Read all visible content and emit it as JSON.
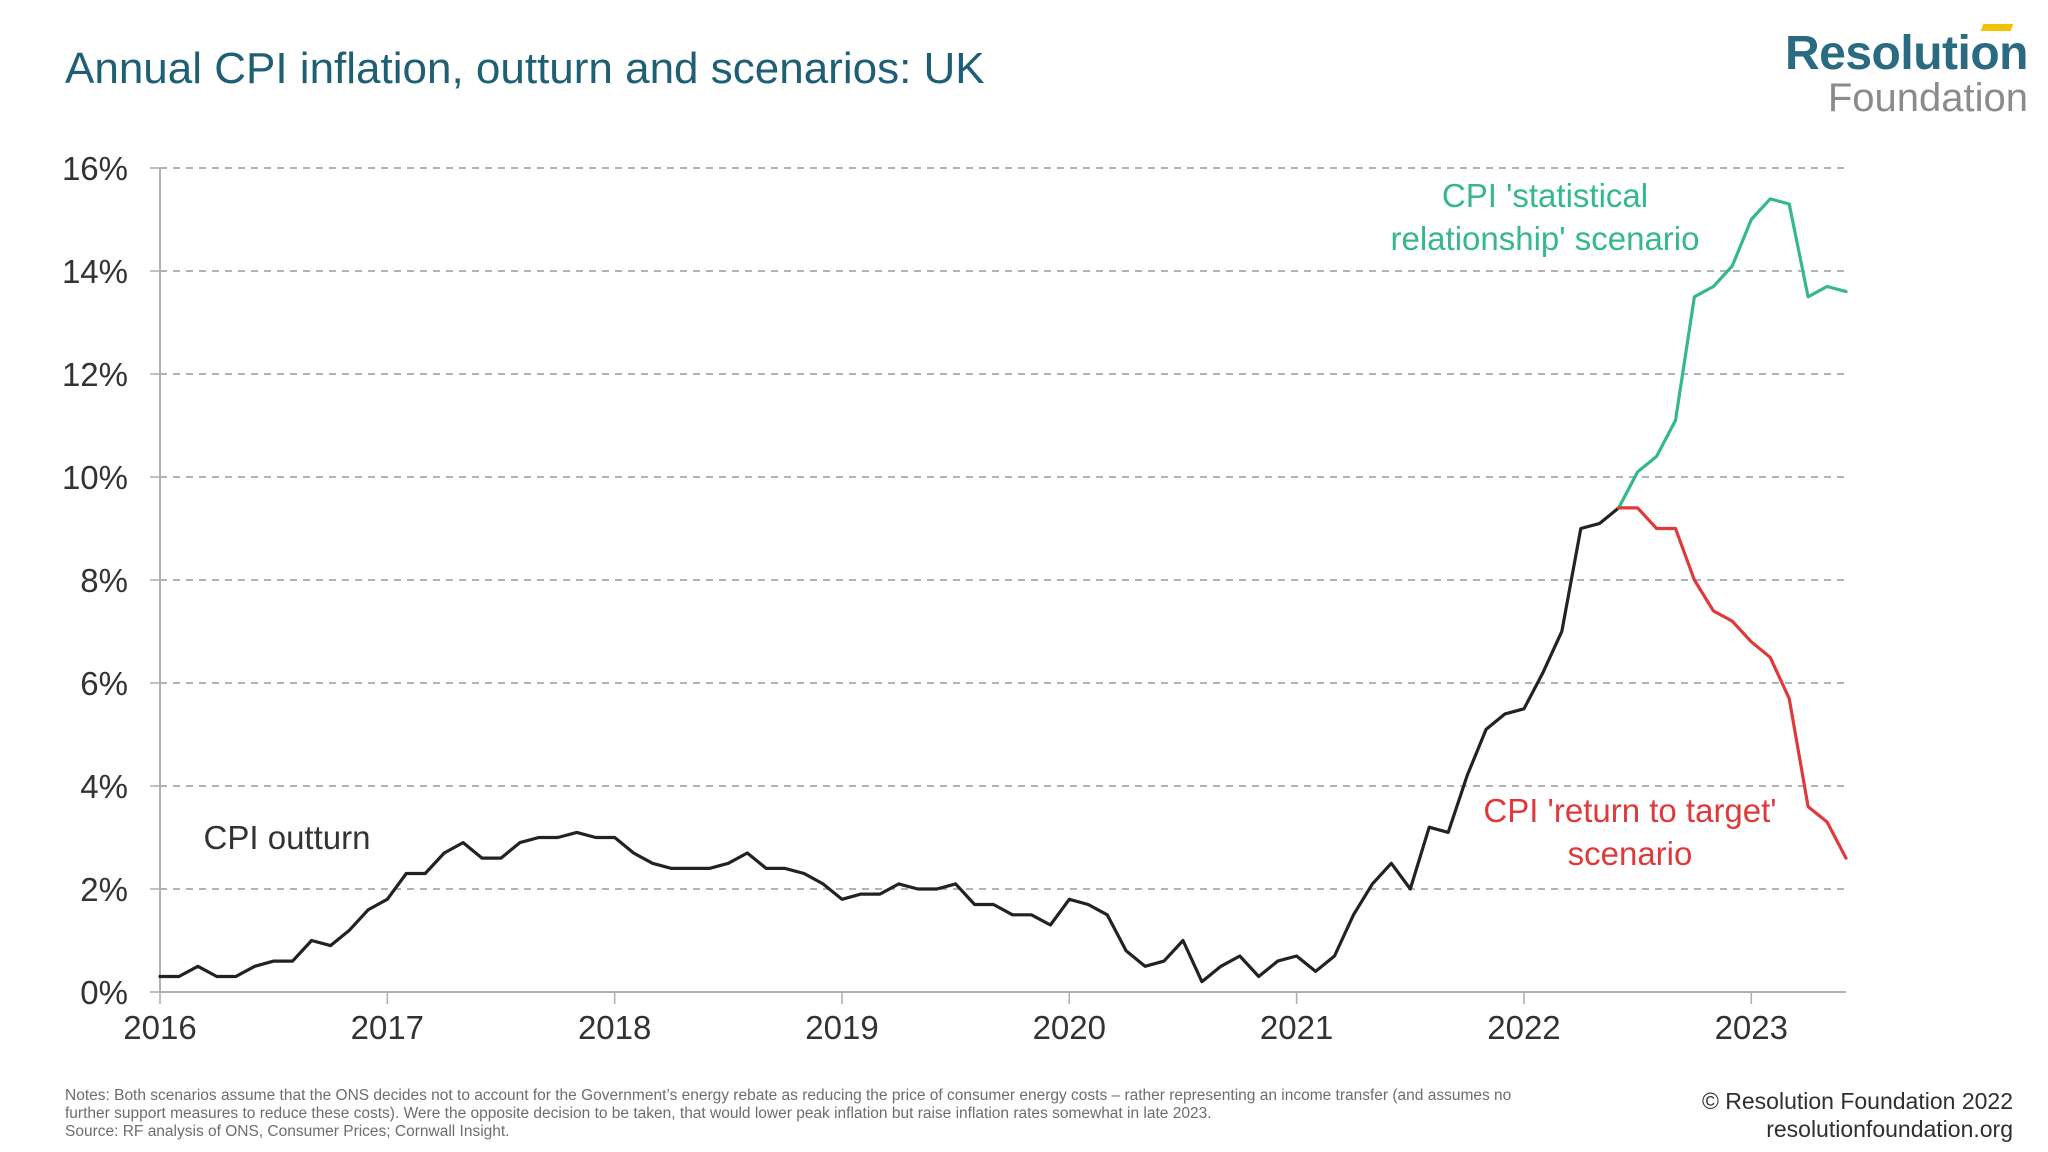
{
  "title": "Annual CPI inflation, outturn and scenarios: UK",
  "logo": {
    "line1": "Resolution",
    "line2": "Foundation",
    "accent_color": "#f2c200"
  },
  "notes": [
    "Notes: Both scenarios assume that the ONS decides not to account for the Government’s energy rebate as reducing the price of consumer energy costs – rather representing an income transfer (and assumes no",
    "further support measures to reduce these costs). Were the opposite decision to be taken, that would lower peak inflation but raise inflation rates somewhat in late 2023.",
    "Source: RF analysis of ONS, Consumer Prices; Cornwall Insight."
  ],
  "credit": {
    "copyright": "© Resolution Foundation 2022",
    "url": "resolutionfoundation.org"
  },
  "chart_data": {
    "type": "line",
    "title": "Annual CPI inflation, outturn and scenarios: UK",
    "xlabel": "",
    "ylabel": "",
    "x_ticks": [
      "2016",
      "2017",
      "2018",
      "2019",
      "2020",
      "2021",
      "2022",
      "2023"
    ],
    "y_ticks": [
      "0%",
      "2%",
      "4%",
      "6%",
      "8%",
      "10%",
      "12%",
      "14%",
      "16%"
    ],
    "xlim": [
      "2016-01",
      "2023-06"
    ],
    "ylim": [
      0,
      16
    ],
    "grid": "horizontal dashed",
    "colors": {
      "outturn": "#222222",
      "statistical": "#35b88c",
      "target": "#de3a3a",
      "grid": "#9a9a9a",
      "axis": "#b0b0b0",
      "tick_text": "#333333"
    },
    "series": [
      {
        "name": "CPI outturn",
        "key": "outturn",
        "start": "2016-01",
        "values": [
          0.3,
          0.3,
          0.5,
          0.3,
          0.3,
          0.5,
          0.6,
          0.6,
          1.0,
          0.9,
          1.2,
          1.6,
          1.8,
          2.3,
          2.3,
          2.7,
          2.9,
          2.6,
          2.6,
          2.9,
          3.0,
          3.0,
          3.1,
          3.0,
          3.0,
          2.7,
          2.5,
          2.4,
          2.4,
          2.4,
          2.5,
          2.7,
          2.4,
          2.4,
          2.3,
          2.1,
          1.8,
          1.9,
          1.9,
          2.1,
          2.0,
          2.0,
          2.1,
          1.7,
          1.7,
          1.5,
          1.5,
          1.3,
          1.8,
          1.7,
          1.5,
          0.8,
          0.5,
          0.6,
          1.0,
          0.2,
          0.5,
          0.7,
          0.3,
          0.6,
          0.7,
          0.4,
          0.7,
          1.5,
          2.1,
          2.5,
          2.0,
          3.2,
          3.1,
          4.2,
          5.1,
          5.4,
          5.5,
          6.2,
          7.0,
          9.0,
          9.1,
          9.4
        ]
      },
      {
        "name": "CPI 'statistical relationship' scenario",
        "key": "statistical",
        "start": "2022-06",
        "values": [
          9.4,
          10.1,
          10.4,
          11.1,
          13.5,
          13.7,
          14.1,
          15.0,
          15.4,
          15.3,
          13.5,
          13.7,
          13.6
        ]
      },
      {
        "name": "CPI 'return to target' scenario",
        "key": "target",
        "start": "2022-06",
        "values": [
          9.4,
          9.4,
          9.0,
          9.0,
          8.0,
          7.4,
          7.2,
          6.8,
          6.5,
          5.7,
          3.6,
          3.3,
          2.6
        ]
      }
    ],
    "annotations": [
      {
        "series": "outturn",
        "lines": [
          "CPI outturn"
        ]
      },
      {
        "series": "statistical",
        "lines": [
          "CPI 'statistical",
          "relationship' scenario"
        ]
      },
      {
        "series": "target",
        "lines": [
          "CPI 'return to target'",
          "scenario"
        ]
      }
    ]
  }
}
